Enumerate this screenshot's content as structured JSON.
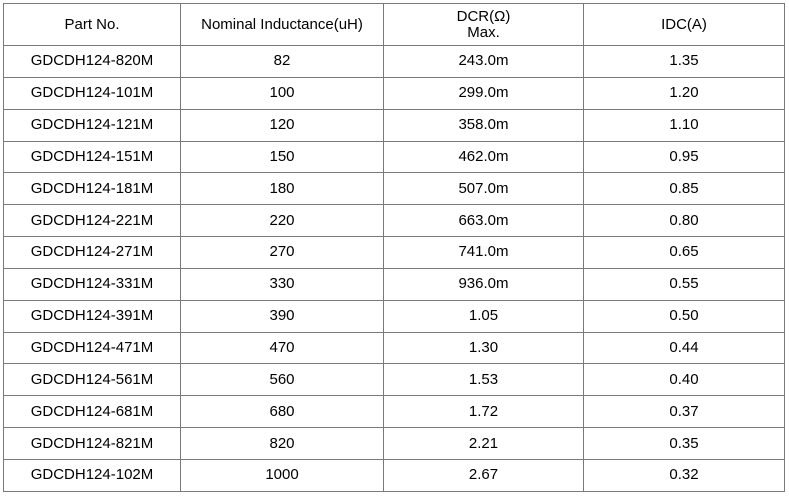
{
  "table": {
    "header": [
      [
        "Part No."
      ],
      [
        "Nominal Inductance(uH)"
      ],
      [
        "DCR(Ω)",
        "Max."
      ],
      [
        "IDC(A)"
      ]
    ],
    "rows": [
      [
        "GDCDH124-820M",
        "82",
        "243.0m",
        "1.35"
      ],
      [
        "GDCDH124-101M",
        "100",
        "299.0m",
        "1.20"
      ],
      [
        "GDCDH124-121M",
        "120",
        "358.0m",
        "1.10"
      ],
      [
        "GDCDH124-151M",
        "150",
        "462.0m",
        "0.95"
      ],
      [
        "GDCDH124-181M",
        "180",
        "507.0m",
        "0.85"
      ],
      [
        "GDCDH124-221M",
        "220",
        "663.0m",
        "0.80"
      ],
      [
        "GDCDH124-271M",
        "270",
        "741.0m",
        "0.65"
      ],
      [
        "GDCDH124-331M",
        "330",
        "936.0m",
        "0.55"
      ],
      [
        "GDCDH124-391M",
        "390",
        "1.05",
        "0.50"
      ],
      [
        "GDCDH124-471M",
        "470",
        "1.30",
        "0.44"
      ],
      [
        "GDCDH124-561M",
        "560",
        "1.53",
        "0.40"
      ],
      [
        "GDCDH124-681M",
        "680",
        "1.72",
        "0.37"
      ],
      [
        "GDCDH124-821M",
        "820",
        "2.21",
        "0.35"
      ],
      [
        "GDCDH124-102M",
        "1000",
        "2.67",
        "0.32"
      ]
    ]
  }
}
